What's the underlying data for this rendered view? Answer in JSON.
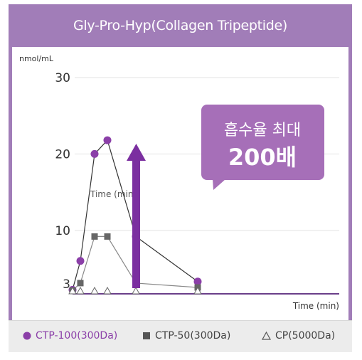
{
  "title": "Gly-Pro-Hyp(Collagen Tripeptide)",
  "callout": {
    "line1": "흡수율 최대",
    "line2": "200배"
  },
  "legend": [
    {
      "label": "CTP-100(300Da)",
      "color": "#8b3fa8",
      "marker": "circle"
    },
    {
      "label": "CTP-50(300Da)",
      "color": "#555555",
      "marker": "square"
    },
    {
      "label": "CP(5000Da)",
      "color": "#555555",
      "marker": "triangle-outline"
    }
  ],
  "colors": {
    "frame": "#a17db8",
    "ctp100": "#8b3fa8",
    "arrow": "#7b2fa0",
    "callout": "#a66fb8"
  },
  "chart_data": {
    "type": "line",
    "ylabel": "nmol/mL",
    "xlabel": "Time (min)",
    "mid_xlabel": "Time (min)",
    "y_ticks": [
      3,
      10,
      20,
      30
    ],
    "ylim": [
      0,
      30
    ],
    "grid": true,
    "series": [
      {
        "name": "CTP-100(300Da)",
        "marker": "circle",
        "color": "#8b3fa8",
        "x": [
          0,
          1,
          2,
          3,
          4,
          5,
          6
        ],
        "y": [
          0.5,
          6,
          20,
          21.8,
          9.2,
          3.3,
          null
        ]
      },
      {
        "name": "CTP-50(300Da)",
        "marker": "square",
        "color": "#666666",
        "x": [
          0,
          1,
          2,
          3,
          4,
          5,
          6
        ],
        "y": [
          0.2,
          3.1,
          9.2,
          9.2,
          3.1,
          1.5,
          null
        ]
      },
      {
        "name": "CP(5000Da)",
        "marker": "triangle-outline",
        "color": "#666666",
        "x": [
          0,
          1,
          2,
          3,
          4,
          5,
          6
        ],
        "y": [
          0,
          0,
          0,
          0,
          0,
          0,
          null
        ]
      }
    ]
  }
}
